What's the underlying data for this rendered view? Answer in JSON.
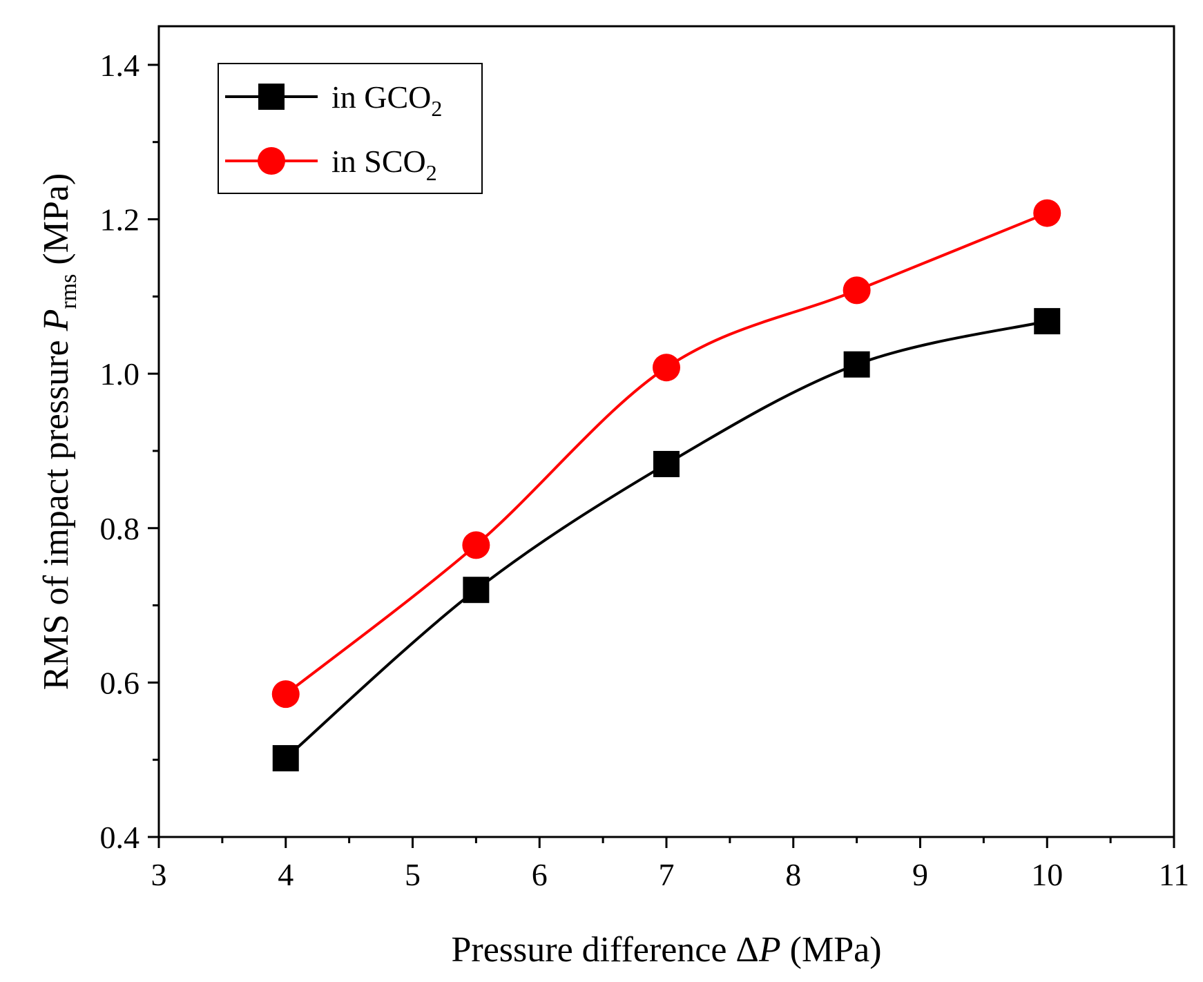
{
  "chart_data": {
    "type": "line",
    "title": "",
    "xlabel": {
      "prefix": "Pressure difference Δ",
      "var": "P",
      "suffix": " (MPa)"
    },
    "ylabel": {
      "prefix": "RMS of impact pressure ",
      "var": "P",
      "sub": "rms",
      "suffix": " (MPa)"
    },
    "xlim": [
      3,
      11
    ],
    "ylim": [
      0.4,
      1.45
    ],
    "xticks": [
      3,
      4,
      5,
      6,
      7,
      8,
      9,
      10,
      11
    ],
    "yticks": [
      0.4,
      0.6,
      0.8,
      1.0,
      1.2,
      1.4
    ],
    "ytick_labels": [
      "0.4",
      "0.6",
      "0.8",
      "1.0",
      "1.2",
      "1.4"
    ],
    "grid": false,
    "legend_position": "top-left",
    "series": [
      {
        "name": "in GCO2",
        "label_main": "in GCO",
        "label_sub": "2",
        "color": "#000000",
        "marker": "square",
        "x": [
          4,
          5.5,
          7,
          8.5,
          10
        ],
        "y": [
          0.502,
          0.72,
          0.883,
          1.012,
          1.068
        ]
      },
      {
        "name": "in SCO2",
        "label_main": "in SCO",
        "label_sub": "2",
        "color": "#ff0000",
        "marker": "circle",
        "x": [
          4,
          5.5,
          7,
          8.5,
          10
        ],
        "y": [
          0.585,
          0.778,
          1.008,
          1.108,
          1.208
        ]
      }
    ]
  }
}
